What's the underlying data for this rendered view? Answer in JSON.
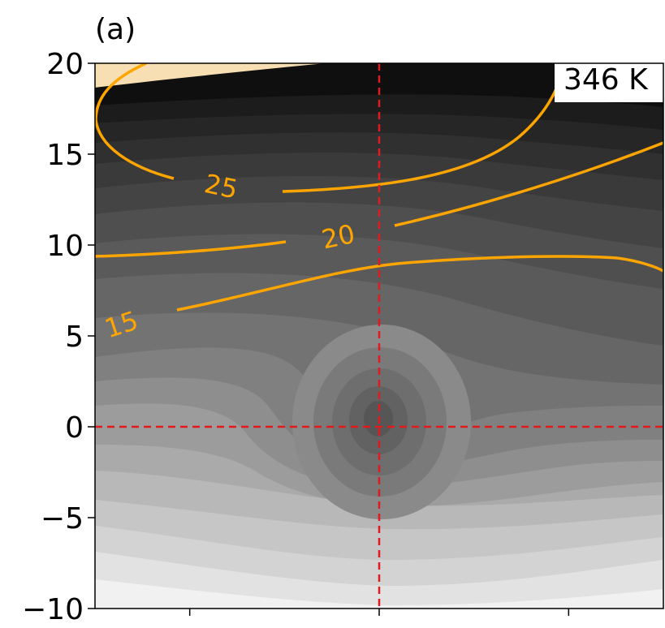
{
  "chart_data": {
    "type": "heatmap",
    "panel_label": "(a)",
    "annotation": "346 K",
    "ylim": [
      -10,
      20
    ],
    "y_ticks": [
      {
        "value": 20,
        "label": "20"
      },
      {
        "value": 15,
        "label": "15"
      },
      {
        "value": 10,
        "label": "10"
      },
      {
        "value": 5,
        "label": "5"
      },
      {
        "value": 0,
        "label": "0"
      },
      {
        "value": -5,
        "label": "−5"
      },
      {
        "value": -10,
        "label": "−10"
      }
    ],
    "x_ticks_count": 3,
    "reference_lines": {
      "vertical": "center",
      "horizontal_y": 0,
      "color": "#e31a1c",
      "style": "dashed"
    },
    "filled_contours": {
      "colormap": "greys",
      "levels": 16,
      "top_left_fill": "#f7dfb3"
    },
    "line_contours": {
      "color": "#ffa500",
      "levels": [
        {
          "value": 25,
          "label": "25"
        },
        {
          "value": 20,
          "label": "20"
        },
        {
          "value": 15,
          "label": "15"
        }
      ]
    }
  }
}
